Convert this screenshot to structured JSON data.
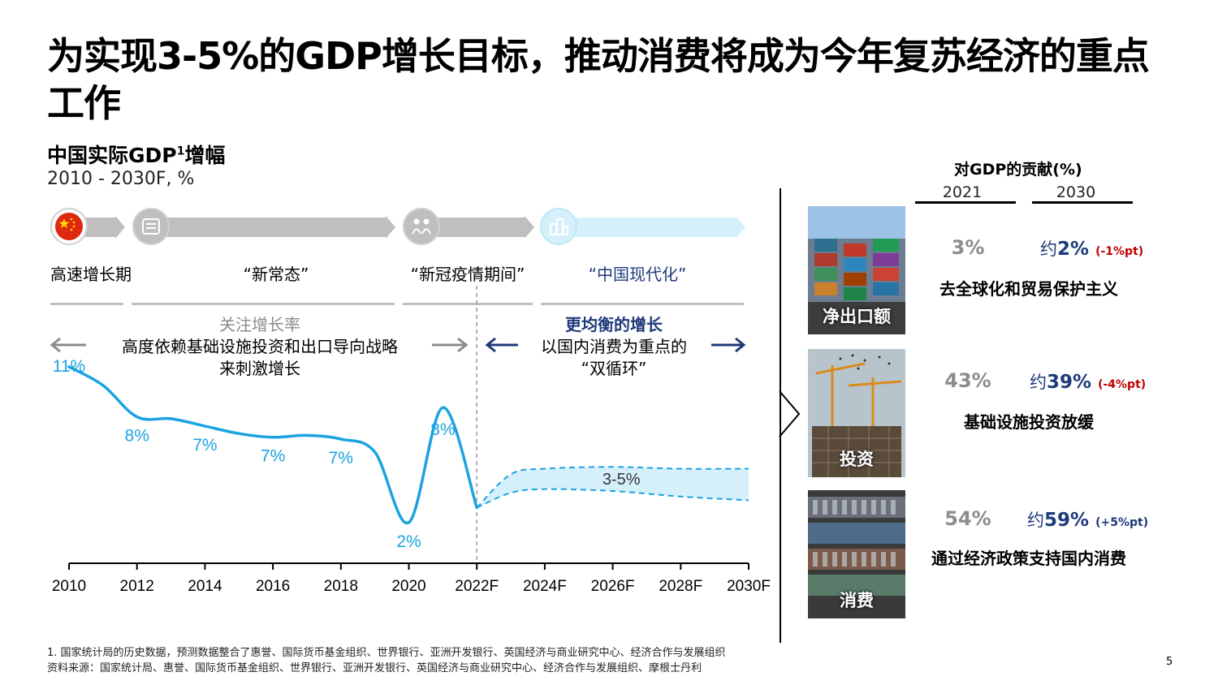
{
  "title": "为实现3-5%的GDP增长目标，推动消费将成为今年复苏经济的重点工作",
  "chart_header": {
    "subtitle": "中国实际GDP",
    "sup": "1",
    "subtitle_suffix": "增幅",
    "range": "2010 - 2030F, %"
  },
  "phases": [
    {
      "label": "高速增长期",
      "icon": "china-flag-icon"
    },
    {
      "label": "“新常态”",
      "icon": "document-icon"
    },
    {
      "label": "“新冠疫情期间”",
      "icon": "people-distancing-icon"
    },
    {
      "label": "“中国现代化”",
      "icon": "city-buildings-icon"
    }
  ],
  "left_desc": {
    "heading": "关注增长率",
    "line1": "高度依赖基础设施投资和出口导向战略",
    "line2": "来刺激增长"
  },
  "right_desc": {
    "heading": "更均衡的增长",
    "line1": "以国内消费为重点的",
    "line2": "“双循环”"
  },
  "colors": {
    "line": "#1ba3e0",
    "band": "#d6f0fb",
    "navy": "#1f3a7a",
    "grey": "#8c8c8c",
    "red": "#c00000"
  },
  "chart_data": {
    "type": "line",
    "xlabel": "",
    "ylabel": "",
    "x_ticks": [
      "2010",
      "2012",
      "2014",
      "2016",
      "2018",
      "2020",
      "2022F",
      "2024F",
      "2026F",
      "2028F",
      "2030F"
    ],
    "xlim": [
      2010,
      2030
    ],
    "ylim": [
      0,
      12
    ],
    "series": [
      {
        "x": [
          2010,
          2011,
          2012,
          2013,
          2014,
          2015,
          2016,
          2017,
          2018,
          2019,
          2020,
          2021,
          2022
        ],
        "values": [
          10.6,
          9.6,
          7.9,
          7.8,
          7.4,
          7.0,
          6.8,
          6.9,
          6.7,
          6.0,
          2.2,
          8.4,
          3.0
        ]
      }
    ],
    "forecast_band": {
      "label": "3-5%",
      "x": [
        2022,
        2023,
        2024,
        2026,
        2028,
        2030
      ],
      "upper": [
        3.0,
        4.8,
        5.1,
        5.2,
        5.1,
        5.1
      ],
      "lower": [
        3.0,
        3.8,
        4.0,
        3.9,
        3.6,
        3.4
      ]
    },
    "data_labels": [
      {
        "x": 2010,
        "text": "11%"
      },
      {
        "x": 2012,
        "text": "8%"
      },
      {
        "x": 2014,
        "text": "7%"
      },
      {
        "x": 2016,
        "text": "7%"
      },
      {
        "x": 2018,
        "text": "7%"
      },
      {
        "x": 2020,
        "text": "2%"
      },
      {
        "x": 2021,
        "text": "8%"
      }
    ],
    "forecast_start": 2022
  },
  "right": {
    "heading": "对GDP的贡献(%)",
    "col_2021": "2021",
    "col_2030": "2030",
    "rows": [
      {
        "label": "净出口额",
        "v2021": "3%",
        "prefix": "约",
        "v2030": "2%",
        "delta": "(-1%pt)",
        "delta_color": "#c00000",
        "driver": "去全球化和贸易保护主义",
        "image": "shipping-containers"
      },
      {
        "label": "投资",
        "v2021": "43%",
        "prefix": "约",
        "v2030": "39%",
        "delta": "(-4%pt)",
        "delta_color": "#c00000",
        "driver": "基础设施投资放缓",
        "image": "construction-cranes"
      },
      {
        "label": "消费",
        "v2021": "54%",
        "prefix": "约",
        "v2030": "59%",
        "delta": "(+5%pt)",
        "delta_color": "#1f3a7a",
        "driver": "通过经济政策支持国内消费",
        "image": "supermarket-shelves"
      }
    ]
  },
  "footnote1": "1.    国家统计局的历史数据，预测数据整合了惠誉、国际货币基金组织、世界银行、亚洲开发银行、英国经济与商业研究中心、经济合作与发展组织",
  "footnote2": "资料来源：国家统计局、惠誉、国际货币基金组织、世界银行、亚洲开发银行、英国经济与商业研究中心、经济合作与发展组织、摩根士丹利",
  "page_number": "5"
}
